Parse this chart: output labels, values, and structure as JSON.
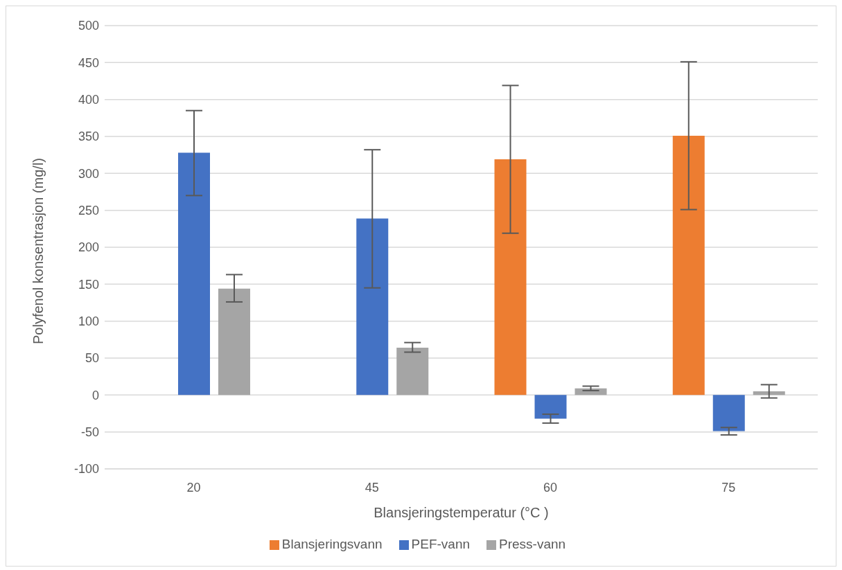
{
  "chart_data": {
    "type": "bar",
    "xlabel": "Blansjeringstemperatur (°C )",
    "ylabel": "Polyfenol konsentrasjon (mg/l)",
    "categories": [
      "20",
      "45",
      "60",
      "75"
    ],
    "series": [
      {
        "name": "Blansjeringsvann",
        "color": "#ed7d31",
        "values": [
          null,
          null,
          319,
          351
        ],
        "errors": [
          null,
          null,
          [
            219,
            419
          ],
          [
            251,
            451
          ]
        ]
      },
      {
        "name": "PEF-vann",
        "color": "#4472c4",
        "values": [
          328,
          239,
          -32,
          -49
        ],
        "errors": [
          [
            270,
            385
          ],
          [
            145,
            332
          ],
          [
            -38,
            -26
          ],
          [
            -54,
            -44
          ]
        ]
      },
      {
        "name": "Press-vann",
        "color": "#a5a5a5",
        "values": [
          144,
          64,
          9,
          5
        ],
        "errors": [
          [
            126,
            163
          ],
          [
            58,
            71
          ],
          [
            6,
            12
          ],
          [
            -4,
            14
          ]
        ]
      }
    ],
    "ylim": [
      -100,
      500
    ],
    "yticks": [
      -100,
      -50,
      0,
      50,
      100,
      150,
      200,
      250,
      300,
      350,
      400,
      450,
      500
    ],
    "grid": "y",
    "legend": "bottom"
  }
}
